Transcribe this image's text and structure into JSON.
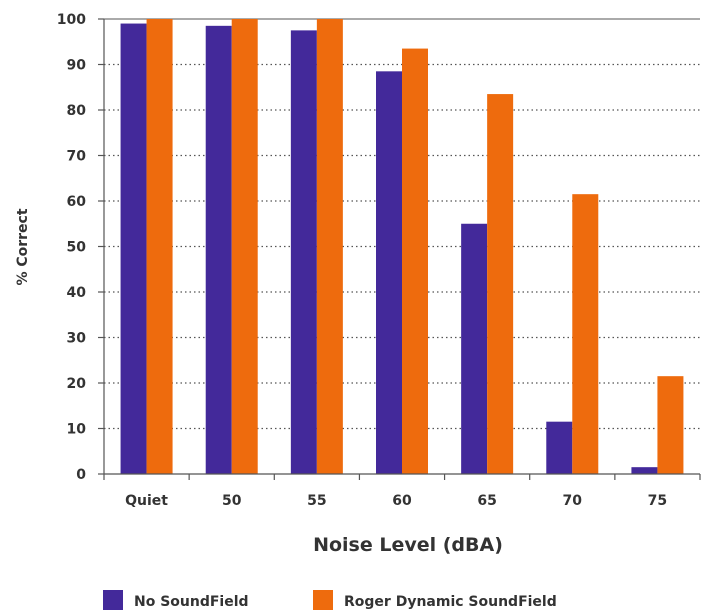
{
  "chart_data": {
    "type": "bar",
    "title": "",
    "xlabel": "Noise Level (dBA)",
    "ylabel": "% Correct",
    "categories": [
      "Quiet",
      "50",
      "55",
      "60",
      "65",
      "70",
      "75"
    ],
    "ylim": [
      0,
      100
    ],
    "yticks": [
      0,
      10,
      20,
      30,
      40,
      50,
      60,
      70,
      80,
      90,
      100
    ],
    "grid": "horizontal dotted",
    "legend": "bottom",
    "series": [
      {
        "name": "No SoundField",
        "color": "#43299A",
        "values": [
          99,
          98.5,
          97.5,
          88.5,
          55,
          11.5,
          1.5
        ]
      },
      {
        "name": "Roger Dynamic SoundField",
        "color": "#EE6B0D",
        "values": [
          100,
          100,
          100,
          93.5,
          83.5,
          61.5,
          21.5
        ]
      }
    ]
  }
}
